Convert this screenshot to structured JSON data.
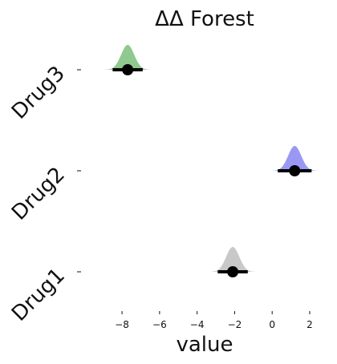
{
  "chart_data": {
    "type": "forest",
    "title": "ΔΔ Forest",
    "xlabel": "value",
    "ylabel": "",
    "xlim": [
      -9.8,
      2.6
    ],
    "x_ticks": [
      -8,
      -6,
      -4,
      -2,
      0,
      2
    ],
    "x_tick_labels": [
      "−8",
      "−6",
      "−4",
      "−2",
      "0",
      "2"
    ],
    "grid": false,
    "categories": [
      "Drug3",
      "Drug2",
      "Drug1"
    ],
    "series": [
      {
        "name": "Drug3",
        "mean": -7.7,
        "ci_low": -8.5,
        "ci_high": -6.9,
        "dist_low": -9.1,
        "dist_high": -6.3,
        "sd": 0.35,
        "color": "#8fc98f"
      },
      {
        "name": "Drug2",
        "mean": 1.2,
        "ci_low": 0.3,
        "ci_high": 2.1,
        "dist_low": -0.1,
        "dist_high": 2.7,
        "sd": 0.35,
        "color": "#9999f5"
      },
      {
        "name": "Drug1",
        "mean": -2.1,
        "ci_low": -2.9,
        "ci_high": -1.3,
        "dist_low": -3.6,
        "dist_high": -0.6,
        "sd": 0.35,
        "color": "#c8c8c8"
      }
    ]
  }
}
